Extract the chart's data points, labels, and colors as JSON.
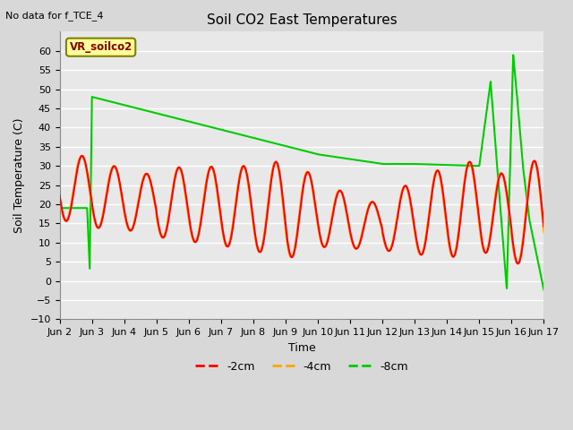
{
  "title": "Soil CO2 East Temperatures",
  "xlabel": "Time",
  "ylabel": "Soil Temperature (C)",
  "top_left_text": "No data for f_TCE_4",
  "annotation_box": "VR_soilco2",
  "ylim": [
    -10,
    65
  ],
  "yticks": [
    -10,
    -5,
    0,
    5,
    10,
    15,
    20,
    25,
    30,
    35,
    40,
    45,
    50,
    55,
    60
  ],
  "xtick_labels": [
    "Jun 2",
    "Jun 3",
    "Jun 4",
    "Jun 5",
    "Jun 6",
    "Jun 7",
    "Jun 8",
    "Jun 9",
    "Jun 10",
    "Jun 11",
    "Jun 12",
    "Jun 13",
    "Jun 14",
    "Jun 15",
    "Jun 16",
    "Jun 17"
  ],
  "color_2cm": "#ff0000",
  "color_4cm": "#ffa500",
  "color_8cm": "#00cc00",
  "legend_labels": [
    "-2cm",
    "-4cm",
    "-8cm"
  ],
  "bg_color": "#e8e8e8",
  "grid_color": "#ffffff",
  "linewidth": 1.5
}
